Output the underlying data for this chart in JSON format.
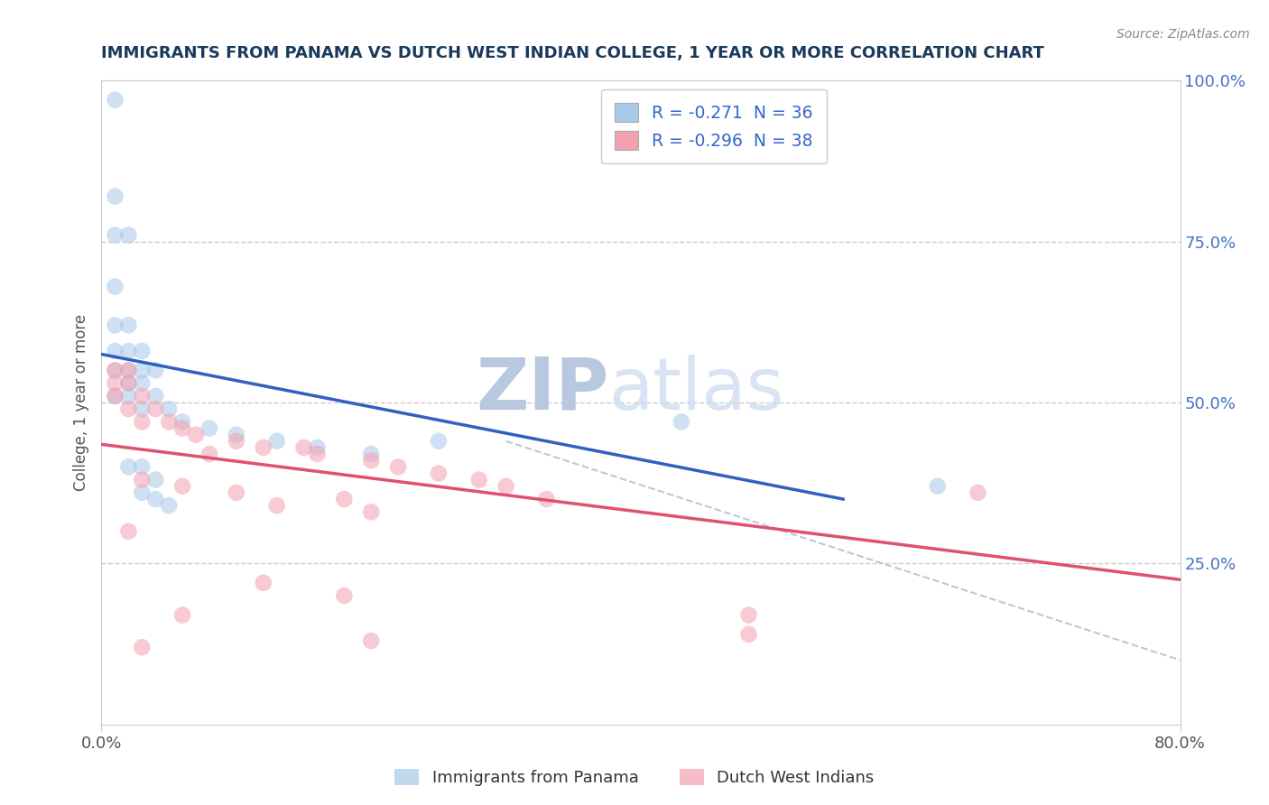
{
  "title": "IMMIGRANTS FROM PANAMA VS DUTCH WEST INDIAN COLLEGE, 1 YEAR OR MORE CORRELATION CHART",
  "source": "Source: ZipAtlas.com",
  "ylabel": "College, 1 year or more",
  "xlabel": "",
  "xlim": [
    0.0,
    0.8
  ],
  "ylim": [
    0.0,
    1.0
  ],
  "xtick_labels": [
    "0.0%",
    "80.0%"
  ],
  "ytick_right_labels": [
    "25.0%",
    "50.0%",
    "75.0%",
    "100.0%"
  ],
  "ytick_right_vals": [
    0.25,
    0.5,
    0.75,
    1.0
  ],
  "blue_color": "#a8c8e8",
  "pink_color": "#f4a0b0",
  "blue_line_color": "#3060c0",
  "pink_line_color": "#e05070",
  "blue_scatter": [
    [
      0.01,
      0.97
    ],
    [
      0.01,
      0.82
    ],
    [
      0.01,
      0.76
    ],
    [
      0.02,
      0.76
    ],
    [
      0.01,
      0.68
    ],
    [
      0.01,
      0.62
    ],
    [
      0.02,
      0.62
    ],
    [
      0.01,
      0.58
    ],
    [
      0.02,
      0.58
    ],
    [
      0.03,
      0.58
    ],
    [
      0.01,
      0.55
    ],
    [
      0.02,
      0.55
    ],
    [
      0.03,
      0.55
    ],
    [
      0.04,
      0.55
    ],
    [
      0.02,
      0.53
    ],
    [
      0.03,
      0.53
    ],
    [
      0.01,
      0.51
    ],
    [
      0.02,
      0.51
    ],
    [
      0.04,
      0.51
    ],
    [
      0.03,
      0.49
    ],
    [
      0.05,
      0.49
    ],
    [
      0.06,
      0.47
    ],
    [
      0.08,
      0.46
    ],
    [
      0.1,
      0.45
    ],
    [
      0.13,
      0.44
    ],
    [
      0.16,
      0.43
    ],
    [
      0.2,
      0.42
    ],
    [
      0.02,
      0.4
    ],
    [
      0.03,
      0.4
    ],
    [
      0.04,
      0.38
    ],
    [
      0.03,
      0.36
    ],
    [
      0.04,
      0.35
    ],
    [
      0.05,
      0.34
    ],
    [
      0.43,
      0.47
    ],
    [
      0.25,
      0.44
    ],
    [
      0.62,
      0.37
    ]
  ],
  "pink_scatter": [
    [
      0.01,
      0.55
    ],
    [
      0.02,
      0.55
    ],
    [
      0.01,
      0.53
    ],
    [
      0.02,
      0.53
    ],
    [
      0.01,
      0.51
    ],
    [
      0.03,
      0.51
    ],
    [
      0.02,
      0.49
    ],
    [
      0.04,
      0.49
    ],
    [
      0.03,
      0.47
    ],
    [
      0.05,
      0.47
    ],
    [
      0.06,
      0.46
    ],
    [
      0.07,
      0.45
    ],
    [
      0.1,
      0.44
    ],
    [
      0.12,
      0.43
    ],
    [
      0.15,
      0.43
    ],
    [
      0.08,
      0.42
    ],
    [
      0.16,
      0.42
    ],
    [
      0.2,
      0.41
    ],
    [
      0.22,
      0.4
    ],
    [
      0.25,
      0.39
    ],
    [
      0.03,
      0.38
    ],
    [
      0.28,
      0.38
    ],
    [
      0.06,
      0.37
    ],
    [
      0.3,
      0.37
    ],
    [
      0.1,
      0.36
    ],
    [
      0.18,
      0.35
    ],
    [
      0.33,
      0.35
    ],
    [
      0.13,
      0.34
    ],
    [
      0.2,
      0.33
    ],
    [
      0.65,
      0.36
    ],
    [
      0.02,
      0.3
    ],
    [
      0.12,
      0.22
    ],
    [
      0.18,
      0.2
    ],
    [
      0.06,
      0.17
    ],
    [
      0.2,
      0.13
    ],
    [
      0.48,
      0.17
    ],
    [
      0.48,
      0.14
    ],
    [
      0.03,
      0.12
    ]
  ],
  "blue_line_x": [
    0.0,
    0.55
  ],
  "blue_line_y": [
    0.575,
    0.35
  ],
  "pink_line_x": [
    0.0,
    0.8
  ],
  "pink_line_y": [
    0.435,
    0.225
  ],
  "dash_line_x": [
    0.3,
    0.8
  ],
  "dash_line_y": [
    0.44,
    0.1
  ],
  "watermark_zip": "ZIP",
  "watermark_atlas": "atlas",
  "watermark_color": "#ccd8ec",
  "title_color": "#1a3a5c",
  "source_color": "#888888",
  "axis_color": "#555555",
  "right_tick_color": "#4472c4",
  "background_color": "#ffffff",
  "grid_color": "#cccccc"
}
